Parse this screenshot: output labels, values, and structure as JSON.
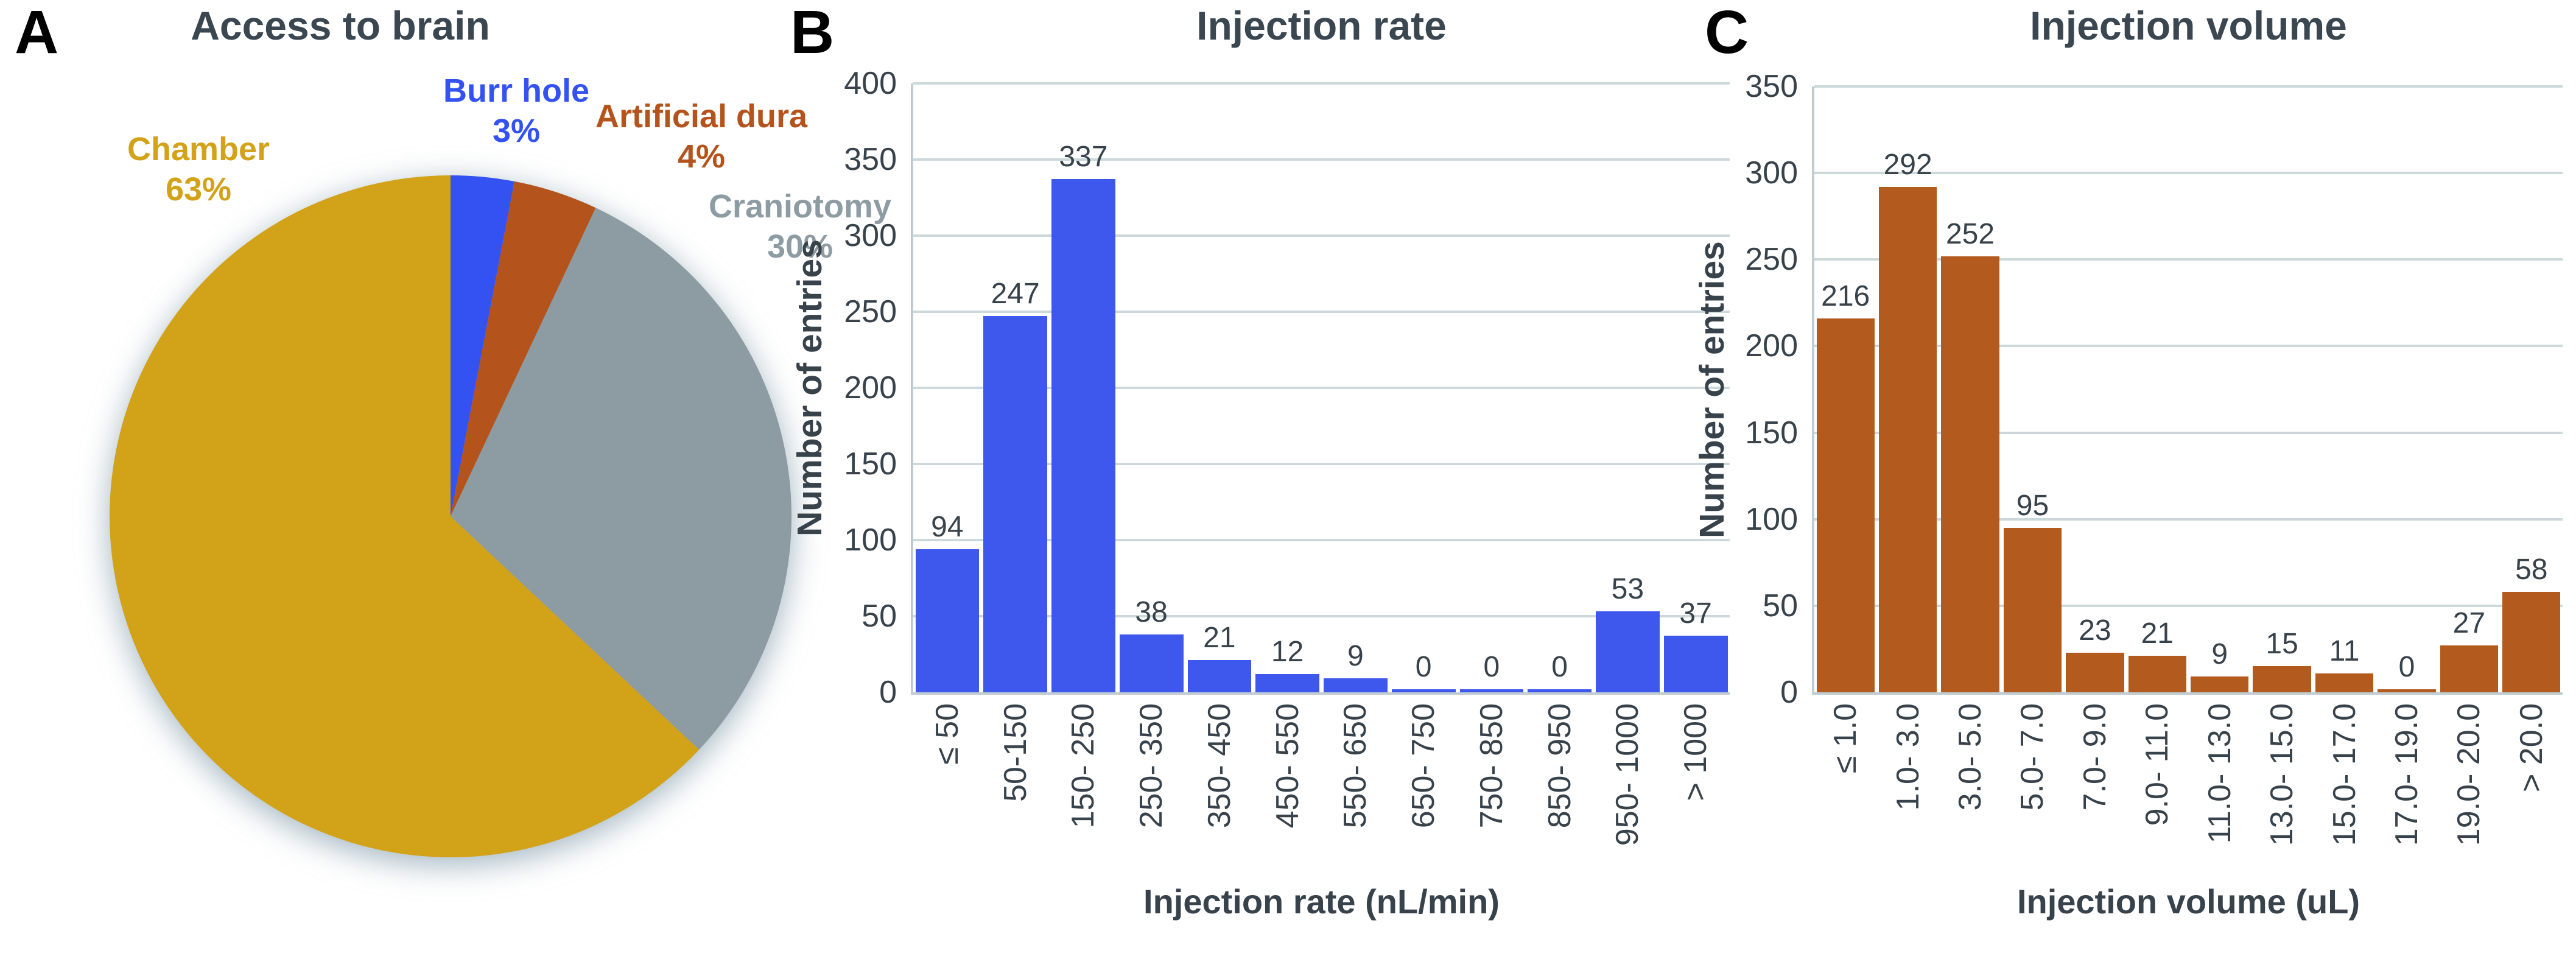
{
  "panels": [
    {
      "letter": "A",
      "title": "Access to brain"
    },
    {
      "letter": "B",
      "title": "Injection rate"
    },
    {
      "letter": "C",
      "title": "Injection volume"
    }
  ],
  "colors": {
    "title_text": "#3A4650",
    "tick_text": "#37424B",
    "gridline": "#CDD8DB",
    "axis_spine": "#C0CCD2",
    "panel_letter": "#000000"
  },
  "chart_data": [
    {
      "type": "pie",
      "panel": "A",
      "title": "Access to brain",
      "start_at": "12-oclock",
      "direction": "clockwise",
      "slices": [
        {
          "label": "Burr hole",
          "value_pct": 3,
          "pct_display": "3%",
          "color": "#3352F1"
        },
        {
          "label": "Artificial dura",
          "value_pct": 4,
          "pct_display": "4%",
          "color": "#B5531C"
        },
        {
          "label": "Craniotomy",
          "value_pct": 30,
          "pct_display": "30%",
          "color": "#8D9BA3"
        },
        {
          "label": "Chamber",
          "value_pct": 63,
          "pct_display": "63%",
          "color": "#D2A218"
        }
      ]
    },
    {
      "type": "bar",
      "panel": "B",
      "title": "Injection rate",
      "xlabel": "Injection rate (nL/min)",
      "ylabel": "Number of entries",
      "categories": [
        "≤ 50",
        "50-150",
        "150- 250",
        "250- 350",
        "350- 450",
        "450- 550",
        "550- 650",
        "650- 750",
        "750- 850",
        "850- 950",
        "950- 1000",
        "> 1000"
      ],
      "values": [
        94,
        247,
        337,
        38,
        21,
        12,
        9,
        0,
        0,
        0,
        53,
        37
      ],
      "bar_color": "#3E57ED",
      "ylim": [
        0,
        400
      ],
      "yticks": [
        0,
        50,
        100,
        150,
        200,
        250,
        300,
        350,
        400
      ],
      "grid": true,
      "legend": null
    },
    {
      "type": "bar",
      "panel": "C",
      "title": "Injection volume",
      "xlabel": "Injection volume (uL)",
      "ylabel": "Number of entries",
      "categories": [
        "≤ 1.0",
        "1.0- 3.0",
        "3.0- 5.0",
        "5.0- 7.0",
        "7.0- 9.0",
        "9.0- 11.0",
        "11.0- 13.0",
        "13.0- 15.0",
        "15.0- 17.0",
        "17.0- 19.0",
        "19.0- 20.0",
        "> 20.0"
      ],
      "values": [
        216,
        292,
        252,
        95,
        23,
        21,
        9,
        15,
        11,
        0,
        27,
        58
      ],
      "bar_color": "#B35A1E",
      "ylim": [
        0,
        350
      ],
      "yticks": [
        0,
        50,
        100,
        150,
        200,
        250,
        300,
        350
      ],
      "grid": true,
      "legend": null
    }
  ]
}
